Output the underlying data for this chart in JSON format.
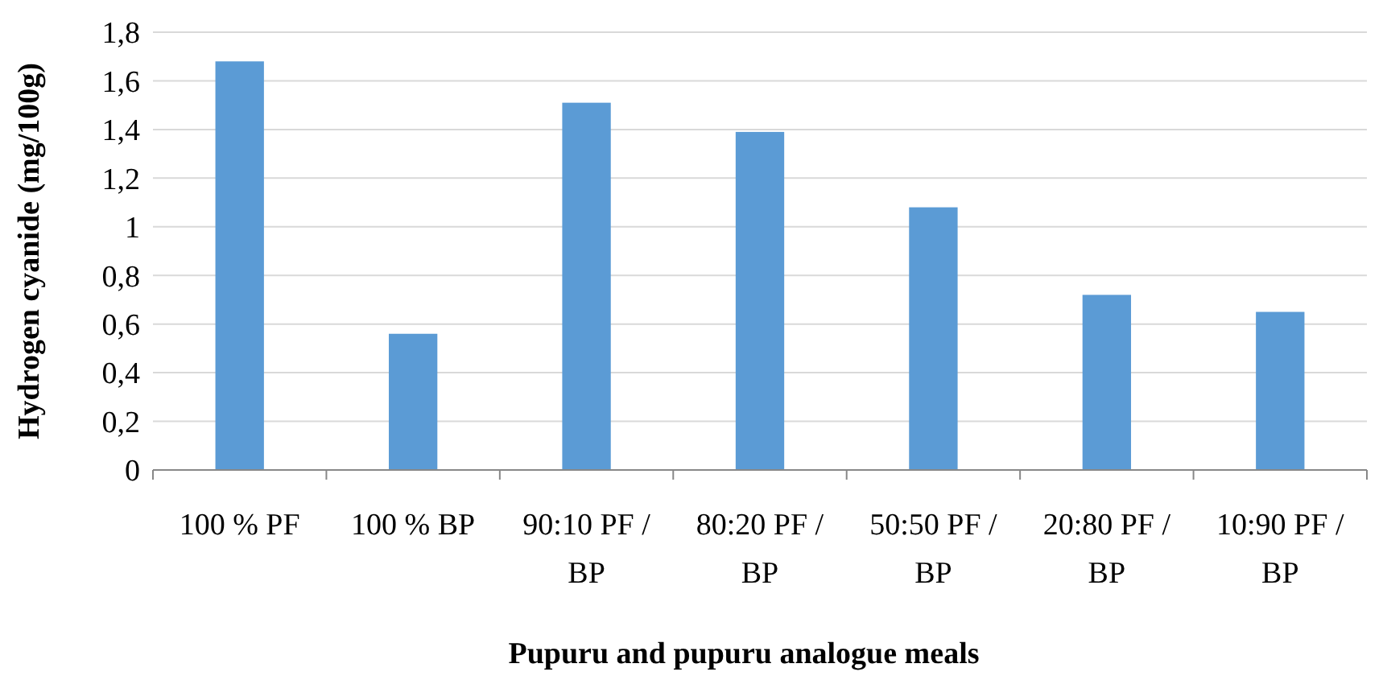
{
  "chart_data": {
    "type": "bar",
    "xlabel": "Pupuru and pupuru analogue meals",
    "ylabel": "Hydrogen cyanide (mg/100g)",
    "categories": [
      "100 % PF",
      "100 % BP",
      "90:10 PF / BP",
      "80:20 PF / BP",
      "50:50 PF / BP",
      "20:80 PF / BP",
      "10:90 PF / BP"
    ],
    "values": [
      1.68,
      0.56,
      1.51,
      1.39,
      1.08,
      0.72,
      0.65
    ],
    "color": "#5b9bd5",
    "ylim": [
      0,
      1.8
    ],
    "yticks": [
      0,
      {
        "value": 0.2,
        "label": "0,2"
      },
      {
        "value": 0.4,
        "label": "0,4"
      },
      {
        "value": 0.6,
        "label": "0,6"
      },
      {
        "value": 0.8,
        "label": "0,8"
      },
      1,
      {
        "value": 1.2,
        "label": "1,2"
      },
      {
        "value": 1.4,
        "label": "1,4"
      },
      {
        "value": 1.6,
        "label": "1,6"
      },
      {
        "value": 1.8,
        "label": "1,8"
      }
    ],
    "grid": "y"
  }
}
